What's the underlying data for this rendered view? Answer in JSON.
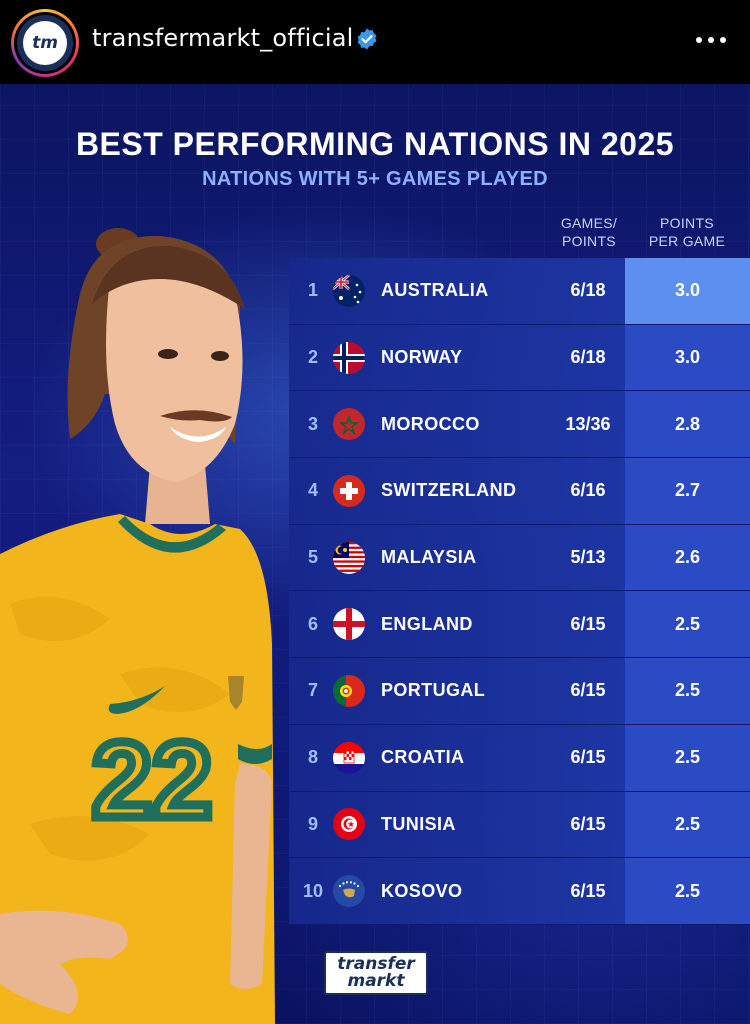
{
  "header": {
    "avatar_text": "tm",
    "username": "transfermarkt_official",
    "verified": true,
    "more_icon": "more-horizontal-icon"
  },
  "post": {
    "title": "BEST PERFORMING NATIONS IN 2025",
    "subtitle": "NATIONS WITH 5+ GAMES PLAYED",
    "columns": {
      "games_points": [
        "GAMES/",
        "POINTS"
      ],
      "ppg": [
        "POINTS",
        "PER GAME"
      ]
    },
    "player_jersey_number": "22",
    "rows": [
      {
        "rank": "1",
        "country": "AUSTRALIA",
        "games_points": "6/18",
        "ppg": "3.0"
      },
      {
        "rank": "2",
        "country": "NORWAY",
        "games_points": "6/18",
        "ppg": "3.0"
      },
      {
        "rank": "3",
        "country": "MOROCCO",
        "games_points": "13/36",
        "ppg": "2.8"
      },
      {
        "rank": "4",
        "country": "SWITZERLAND",
        "games_points": "6/16",
        "ppg": "2.7"
      },
      {
        "rank": "5",
        "country": "MALAYSIA",
        "games_points": "5/13",
        "ppg": "2.6"
      },
      {
        "rank": "6",
        "country": "ENGLAND",
        "games_points": "6/15",
        "ppg": "2.5"
      },
      {
        "rank": "7",
        "country": "PORTUGAL",
        "games_points": "6/15",
        "ppg": "2.5"
      },
      {
        "rank": "8",
        "country": "CROATIA",
        "games_points": "6/15",
        "ppg": "2.5"
      },
      {
        "rank": "9",
        "country": "TUNISIA",
        "games_points": "6/15",
        "ppg": "2.5"
      },
      {
        "rank": "10",
        "country": "KOSOVO",
        "games_points": "6/15",
        "ppg": "2.5"
      }
    ],
    "footer_logo": [
      "transfer",
      "markt"
    ]
  },
  "colors": {
    "background": "#000000",
    "graphic_blue": "#141d80",
    "ppg_highlight": "#5d8ff0",
    "subtitle": "#8fb0ff",
    "jersey_yellow": "#f2b51c",
    "jersey_green": "#1f6f5c"
  }
}
